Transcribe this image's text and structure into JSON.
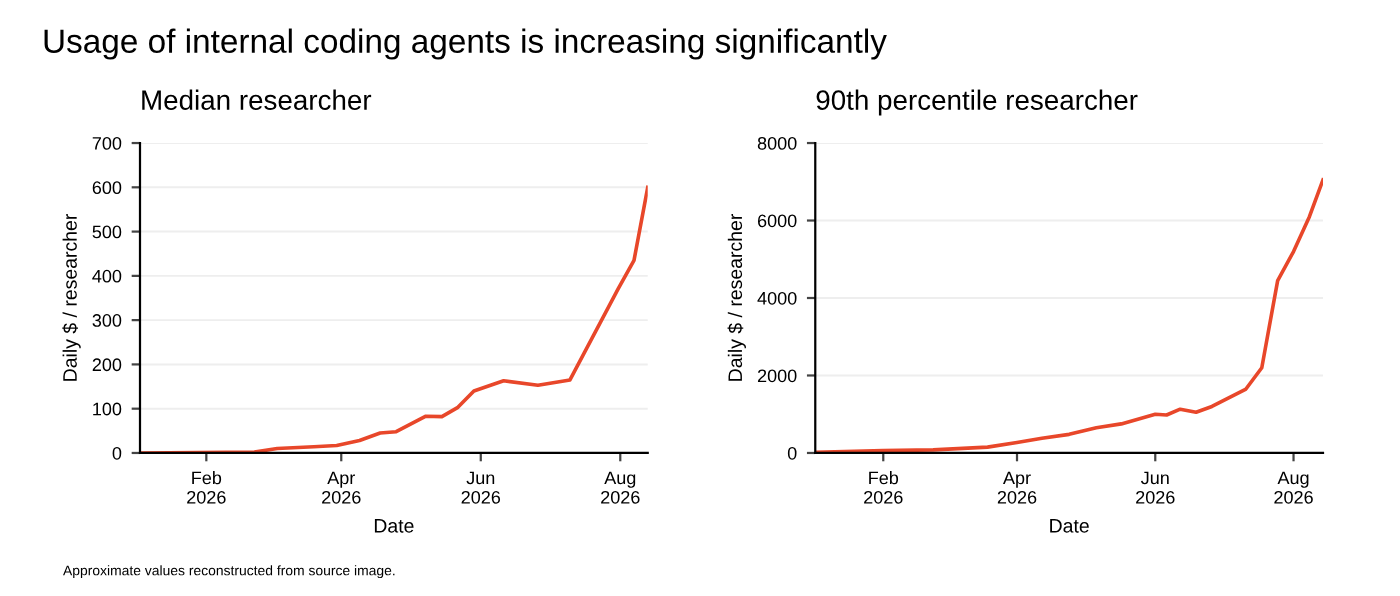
{
  "chart_data": [
    {
      "type": "line",
      "title": "Median researcher",
      "xlabel": "Date",
      "ylabel": "Daily $ / researcher",
      "color": "#e8472a",
      "grid": "y",
      "legend": false,
      "x": [
        "2026-01-03",
        "2026-02-22",
        "2026-03-04",
        "2026-03-20",
        "2026-03-30",
        "2026-04-09",
        "2026-04-18",
        "2026-04-25",
        "2026-05-08",
        "2026-05-15",
        "2026-05-22",
        "2026-05-29",
        "2026-06-11",
        "2026-06-26",
        "2026-07-10",
        "2026-07-31",
        "2026-08-07",
        "2026-08-13"
      ],
      "values": [
        0,
        2,
        10,
        14,
        17,
        28,
        45,
        48,
        83,
        82,
        103,
        140,
        163,
        153,
        165,
        370,
        435,
        600
      ],
      "xlim": [
        "2026-01-03",
        "2026-08-13"
      ],
      "ylim": [
        0,
        700
      ],
      "yticks": [
        0,
        100,
        200,
        300,
        400,
        500,
        600,
        700
      ],
      "xticks": [
        {
          "value": "2026-02-01",
          "label": "Feb\n2026"
        },
        {
          "value": "2026-04-01",
          "label": "Apr\n2026"
        },
        {
          "value": "2026-06-01",
          "label": "Jun\n2026"
        },
        {
          "value": "2026-08-01",
          "label": "Aug\n2026"
        }
      ],
      "annotations": [
        "Usage of internal coding agents is increasing significantly"
      ]
    },
    {
      "type": "line",
      "title": "90th percentile researcher",
      "xlabel": "Date",
      "ylabel": "Daily $ / researcher",
      "color": "#e8472a",
      "grid": "y",
      "legend": false,
      "x": [
        "2026-01-02",
        "2026-02-01",
        "2026-02-23",
        "2026-03-19",
        "2026-04-01",
        "2026-04-12",
        "2026-04-24",
        "2026-05-06",
        "2026-05-17",
        "2026-06-01",
        "2026-06-06",
        "2026-06-12",
        "2026-06-19",
        "2026-06-26",
        "2026-07-11",
        "2026-07-18",
        "2026-07-25",
        "2026-08-01",
        "2026-08-08",
        "2026-08-14"
      ],
      "values": [
        20,
        60,
        80,
        150,
        270,
        380,
        480,
        650,
        750,
        1000,
        980,
        1130,
        1050,
        1200,
        1650,
        2200,
        4450,
        5200,
        6100,
        7050
      ],
      "xlim": [
        "2026-01-02",
        "2026-08-14"
      ],
      "ylim": [
        0,
        8000
      ],
      "yticks": [
        0,
        2000,
        4000,
        6000,
        8000
      ],
      "xticks": [
        {
          "value": "2026-02-01",
          "label": "Feb\n2026"
        },
        {
          "value": "2026-04-01",
          "label": "Apr\n2026"
        },
        {
          "value": "2026-06-01",
          "label": "Jun\n2026"
        },
        {
          "value": "2026-08-01",
          "label": "Aug\n2026"
        }
      ],
      "annotations": [
        "Approximate values reconstructed from source image."
      ]
    }
  ]
}
